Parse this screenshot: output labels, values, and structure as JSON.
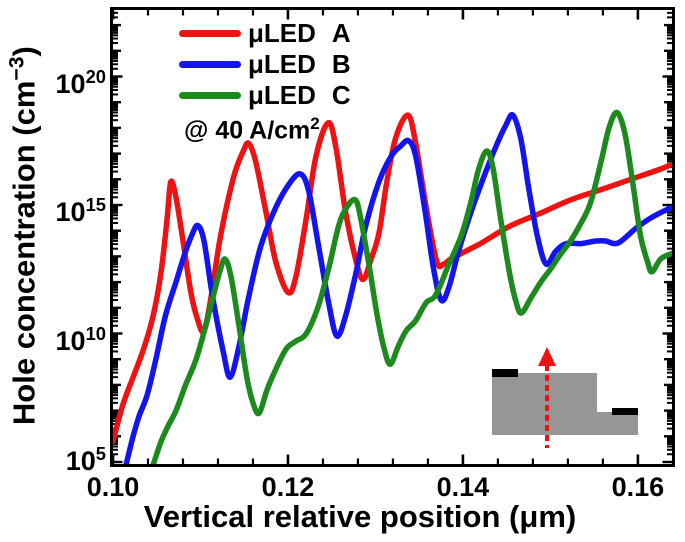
{
  "figure": {
    "background": "#ffffff",
    "axis_color": "#000000"
  },
  "legend": {
    "entries": [
      {
        "name": "μLED",
        "variant": "A",
        "color": "#ee1212"
      },
      {
        "name": "μLED",
        "variant": "B",
        "color": "#1414ee"
      },
      {
        "name": "μLED",
        "variant": "C",
        "color": "#1c8a1c"
      }
    ],
    "annotation": {
      "pre": "@ 40 A/cm",
      "sup": "2"
    }
  },
  "axes": {
    "x": {
      "label": "Vertical relative position (μm)",
      "min": 0.1,
      "max": 0.1639,
      "major_ticks": [
        0.1,
        0.12,
        0.14,
        0.16
      ],
      "tick_labels": [
        "0.10",
        "0.12",
        "0.14",
        "0.16"
      ],
      "minor_step": 0.004
    },
    "y": {
      "label": {
        "pre": "Hole concentration (cm",
        "sup": "−3",
        "post": ")"
      },
      "scale": "log",
      "exp_min": 5,
      "exp_max": 22.7,
      "labeled_exponents": [
        5,
        10,
        15,
        20
      ],
      "tick_labels": [
        "10⁵",
        "10¹⁰",
        "10¹⁵",
        "10²⁰"
      ]
    }
  },
  "inset": {
    "description": "micro-LED mesa cross-section with contacts and vertical cut line",
    "body_color": "#969696",
    "contact_color": "#000000",
    "arrow_color": "#ee1212"
  },
  "chart_data": {
    "type": "line",
    "title": "",
    "xlabel": "Vertical relative position (μm)",
    "ylabel": "Hole concentration (cm^-3)",
    "xlim": [
      0.1,
      0.1639
    ],
    "ylim_log10": [
      5,
      22.7
    ],
    "y_unit": "log10 of hole concentration in cm^-3",
    "grid": false,
    "legend_position": "top-left-inside",
    "annotation": "@ 40 A/cm^2",
    "series": [
      {
        "name": "μLED A",
        "color": "#ee1212",
        "points_x_log10y": [
          [
            0.1,
            5.8
          ],
          [
            0.1011,
            7.2
          ],
          [
            0.1023,
            8.3
          ],
          [
            0.1035,
            9.4
          ],
          [
            0.1046,
            10.7
          ],
          [
            0.1055,
            12.4
          ],
          [
            0.1062,
            14.5
          ],
          [
            0.1066,
            15.9
          ],
          [
            0.1072,
            15.3
          ],
          [
            0.108,
            13.6
          ],
          [
            0.1089,
            11.6
          ],
          [
            0.1097,
            10.5
          ],
          [
            0.1104,
            10.1
          ],
          [
            0.1112,
            11.4
          ],
          [
            0.1123,
            13.8
          ],
          [
            0.1138,
            16.1
          ],
          [
            0.1149,
            17.1
          ],
          [
            0.1155,
            17.4
          ],
          [
            0.1163,
            16.7
          ],
          [
            0.1175,
            14.7
          ],
          [
            0.1186,
            12.8
          ],
          [
            0.12,
            11.6
          ],
          [
            0.1209,
            12.2
          ],
          [
            0.1221,
            14.5
          ],
          [
            0.1232,
            16.9
          ],
          [
            0.1246,
            18.2
          ],
          [
            0.1255,
            17.2
          ],
          [
            0.1266,
            14.7
          ],
          [
            0.1278,
            12.8
          ],
          [
            0.1286,
            12.1
          ],
          [
            0.1295,
            12.9
          ],
          [
            0.1304,
            13.9
          ],
          [
            0.1313,
            15.9
          ],
          [
            0.1323,
            17.6
          ],
          [
            0.1337,
            18.5
          ],
          [
            0.1346,
            17.4
          ],
          [
            0.1358,
            14.9
          ],
          [
            0.137,
            12.8
          ],
          [
            0.1378,
            12.7
          ],
          [
            0.1386,
            12.9
          ],
          [
            0.1403,
            13.2
          ],
          [
            0.142,
            13.5
          ],
          [
            0.1455,
            14.2
          ],
          [
            0.149,
            14.7
          ],
          [
            0.1523,
            15.2
          ],
          [
            0.1558,
            15.6
          ],
          [
            0.1592,
            16.0
          ],
          [
            0.1626,
            16.4
          ],
          [
            0.1647,
            16.7
          ]
        ]
      },
      {
        "name": "μLED B",
        "color": "#1414ee",
        "points_x_log10y": [
          [
            0.1015,
            4.9
          ],
          [
            0.1023,
            6.0
          ],
          [
            0.103,
            6.8
          ],
          [
            0.1039,
            7.6
          ],
          [
            0.1049,
            9.0
          ],
          [
            0.106,
            10.7
          ],
          [
            0.1072,
            12.0
          ],
          [
            0.1083,
            13.2
          ],
          [
            0.1091,
            13.9
          ],
          [
            0.1097,
            14.2
          ],
          [
            0.1104,
            13.6
          ],
          [
            0.1114,
            11.4
          ],
          [
            0.1126,
            9.3
          ],
          [
            0.1134,
            8.3
          ],
          [
            0.1144,
            9.5
          ],
          [
            0.1155,
            11.4
          ],
          [
            0.1169,
            13.4
          ],
          [
            0.1186,
            14.9
          ],
          [
            0.1203,
            15.9
          ],
          [
            0.1215,
            16.2
          ],
          [
            0.1224,
            15.5
          ],
          [
            0.1235,
            13.4
          ],
          [
            0.1247,
            11.1
          ],
          [
            0.1256,
            9.9
          ],
          [
            0.1266,
            10.7
          ],
          [
            0.1278,
            12.4
          ],
          [
            0.1289,
            14.2
          ],
          [
            0.1304,
            15.9
          ],
          [
            0.1318,
            16.9
          ],
          [
            0.1329,
            17.3
          ],
          [
            0.1338,
            17.5
          ],
          [
            0.1346,
            16.9
          ],
          [
            0.1357,
            14.7
          ],
          [
            0.1366,
            12.6
          ],
          [
            0.1375,
            11.3
          ],
          [
            0.1384,
            11.8
          ],
          [
            0.1395,
            13.2
          ],
          [
            0.1409,
            14.7
          ],
          [
            0.1424,
            16.1
          ],
          [
            0.1438,
            17.3
          ],
          [
            0.1449,
            18.1
          ],
          [
            0.1457,
            18.5
          ],
          [
            0.1466,
            17.6
          ],
          [
            0.1475,
            15.7
          ],
          [
            0.1485,
            13.8
          ],
          [
            0.1495,
            12.7
          ],
          [
            0.1506,
            13.2
          ],
          [
            0.1518,
            13.5
          ],
          [
            0.1535,
            13.5
          ],
          [
            0.1552,
            13.6
          ],
          [
            0.1563,
            13.6
          ],
          [
            0.1573,
            13.5
          ],
          [
            0.1581,
            13.6
          ],
          [
            0.1598,
            14.1
          ],
          [
            0.1615,
            14.5
          ],
          [
            0.1632,
            14.8
          ],
          [
            0.1647,
            15.0
          ]
        ]
      },
      {
        "name": "μLED C",
        "color": "#1c8a1c",
        "points_x_log10y": [
          [
            0.1046,
            4.9
          ],
          [
            0.1055,
            5.8
          ],
          [
            0.1063,
            6.4
          ],
          [
            0.1072,
            7.0
          ],
          [
            0.1083,
            8.0
          ],
          [
            0.1095,
            9.0
          ],
          [
            0.1106,
            10.3
          ],
          [
            0.1115,
            11.5
          ],
          [
            0.1122,
            12.4
          ],
          [
            0.1128,
            12.9
          ],
          [
            0.1135,
            12.2
          ],
          [
            0.1144,
            10.3
          ],
          [
            0.1153,
            8.3
          ],
          [
            0.116,
            7.3
          ],
          [
            0.1167,
            6.9
          ],
          [
            0.1176,
            7.8
          ],
          [
            0.1186,
            8.6
          ],
          [
            0.1198,
            9.4
          ],
          [
            0.1209,
            9.7
          ],
          [
            0.1221,
            10.0
          ],
          [
            0.1235,
            11.1
          ],
          [
            0.1247,
            12.6
          ],
          [
            0.1258,
            14.2
          ],
          [
            0.1267,
            14.9
          ],
          [
            0.1277,
            15.2
          ],
          [
            0.1283,
            14.5
          ],
          [
            0.1293,
            12.6
          ],
          [
            0.1302,
            10.7
          ],
          [
            0.131,
            9.4
          ],
          [
            0.1317,
            8.8
          ],
          [
            0.1326,
            9.5
          ],
          [
            0.1335,
            10.1
          ],
          [
            0.1346,
            10.5
          ],
          [
            0.1358,
            11.2
          ],
          [
            0.1369,
            11.5
          ],
          [
            0.1384,
            12.7
          ],
          [
            0.1398,
            13.8
          ],
          [
            0.1409,
            15.1
          ],
          [
            0.1418,
            16.4
          ],
          [
            0.1427,
            17.1
          ],
          [
            0.1434,
            16.5
          ],
          [
            0.1443,
            14.5
          ],
          [
            0.1453,
            12.4
          ],
          [
            0.1461,
            11.2
          ],
          [
            0.1467,
            10.8
          ],
          [
            0.1478,
            11.4
          ],
          [
            0.1489,
            12.0
          ],
          [
            0.15,
            12.5
          ],
          [
            0.1512,
            13.1
          ],
          [
            0.1523,
            13.6
          ],
          [
            0.1535,
            14.3
          ],
          [
            0.1546,
            15.1
          ],
          [
            0.1558,
            16.7
          ],
          [
            0.1567,
            18.0
          ],
          [
            0.1576,
            18.6
          ],
          [
            0.1585,
            17.8
          ],
          [
            0.1594,
            15.9
          ],
          [
            0.1603,
            13.8
          ],
          [
            0.1611,
            12.8
          ],
          [
            0.1616,
            12.4
          ],
          [
            0.1626,
            12.9
          ],
          [
            0.1638,
            13.1
          ],
          [
            0.1647,
            13.2
          ]
        ]
      }
    ]
  }
}
